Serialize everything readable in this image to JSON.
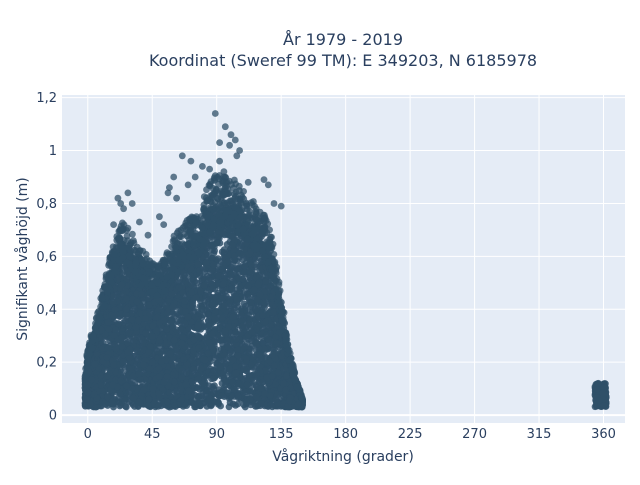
{
  "chart_data": {
    "type": "scatter",
    "title": "År 1979 - 2019",
    "subtitle": "Koordinat (Sweref 99 TM): E 349203, N 6185978",
    "xlabel": "Vågriktning (grader)",
    "ylabel": "Signifikant våghöjd (m)",
    "xlim": [
      -18,
      375
    ],
    "ylim": [
      -0.03,
      1.21
    ],
    "x_ticks": [
      0,
      45,
      90,
      135,
      180,
      225,
      270,
      315,
      360
    ],
    "x_tick_labels": [
      "0",
      "45",
      "90",
      "135",
      "180",
      "225",
      "270",
      "315",
      "360"
    ],
    "y_ticks": [
      0,
      0.2,
      0.4,
      0.6,
      0.8,
      1,
      1.2
    ],
    "y_tick_labels": [
      "0",
      "0,2",
      "0,4",
      "0,6",
      "0,8",
      "1",
      "1,2"
    ],
    "grid": true,
    "marker_color": "#2f5068",
    "background_color": "#e5ecf6",
    "envelope": {
      "x": [
        -2,
        0,
        5,
        10,
        15,
        20,
        25,
        30,
        35,
        40,
        45,
        50,
        55,
        60,
        65,
        70,
        75,
        80,
        85,
        90,
        95,
        100,
        105,
        110,
        115,
        120,
        125,
        130,
        135,
        140,
        145,
        150
      ],
      "y_max": [
        0.15,
        0.25,
        0.33,
        0.44,
        0.56,
        0.64,
        0.7,
        0.66,
        0.6,
        0.58,
        0.55,
        0.53,
        0.58,
        0.64,
        0.67,
        0.7,
        0.72,
        0.77,
        0.84,
        0.87,
        0.86,
        0.85,
        0.83,
        0.8,
        0.77,
        0.74,
        0.7,
        0.6,
        0.44,
        0.26,
        0.14,
        0.06
      ]
    },
    "outliers": [
      {
        "x": 89,
        "y": 1.14
      },
      {
        "x": 92,
        "y": 1.03
      },
      {
        "x": 96,
        "y": 1.09
      },
      {
        "x": 100,
        "y": 1.06
      },
      {
        "x": 103,
        "y": 1.04
      },
      {
        "x": 106,
        "y": 1.0
      },
      {
        "x": 99,
        "y": 1.02
      },
      {
        "x": 104,
        "y": 0.98
      },
      {
        "x": 92,
        "y": 0.96
      },
      {
        "x": 72,
        "y": 0.96
      },
      {
        "x": 66,
        "y": 0.98
      },
      {
        "x": 85,
        "y": 0.93
      },
      {
        "x": 123,
        "y": 0.89
      },
      {
        "x": 126,
        "y": 0.87
      },
      {
        "x": 75,
        "y": 0.9
      },
      {
        "x": 57,
        "y": 0.86
      },
      {
        "x": 56,
        "y": 0.84
      },
      {
        "x": 60,
        "y": 0.9
      },
      {
        "x": 21,
        "y": 0.82
      },
      {
        "x": 28,
        "y": 0.84
      },
      {
        "x": 23,
        "y": 0.8
      },
      {
        "x": 31,
        "y": 0.8
      },
      {
        "x": 25,
        "y": 0.78
      },
      {
        "x": 50,
        "y": 0.75
      },
      {
        "x": 53,
        "y": 0.72
      },
      {
        "x": 135,
        "y": 0.79
      },
      {
        "x": 130,
        "y": 0.8
      },
      {
        "x": 112,
        "y": 0.88
      },
      {
        "x": 80,
        "y": 0.94
      },
      {
        "x": 95,
        "y": 0.92
      },
      {
        "x": 62,
        "y": 0.82
      },
      {
        "x": 70,
        "y": 0.87
      },
      {
        "x": 36,
        "y": 0.73
      },
      {
        "x": 42,
        "y": 0.68
      },
      {
        "x": 18,
        "y": 0.72
      }
    ],
    "cluster_360": {
      "x": [
        354,
        362
      ],
      "y_min": 0.03,
      "y_max": 0.12
    }
  }
}
